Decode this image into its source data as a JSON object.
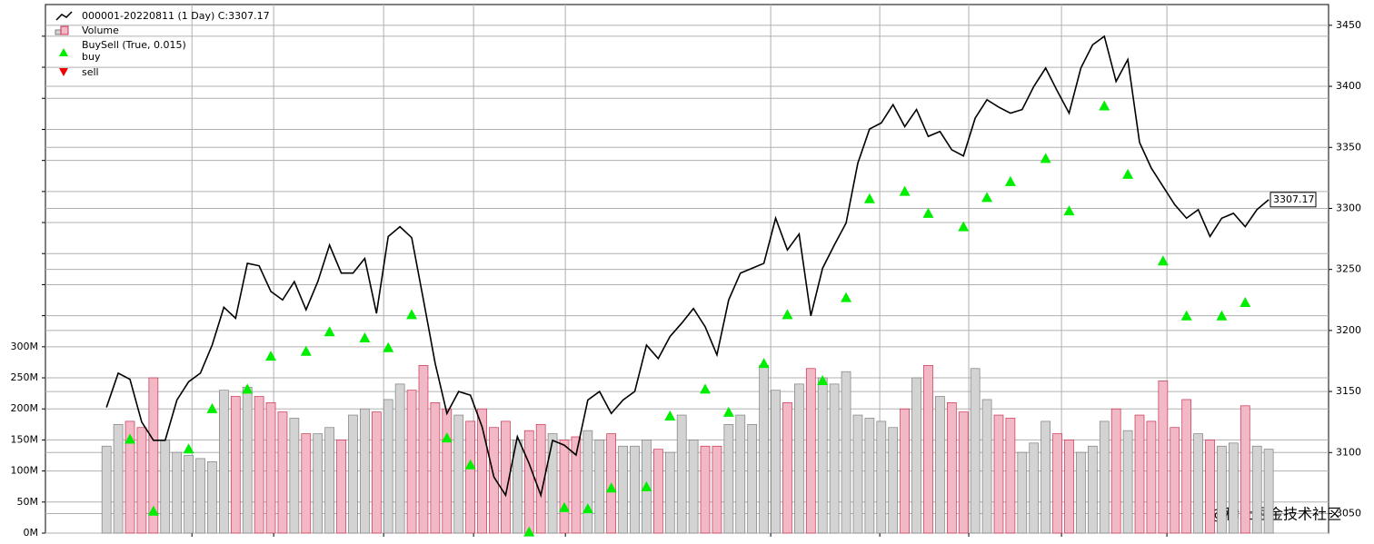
{
  "chart_data": {
    "type": "ohlc-volume",
    "legend": [
      "000001-20220811 (1 Day) C:3307.17",
      "Volume",
      "BuySell (True, 0.015)",
      "buy",
      "sell"
    ],
    "x": [
      0,
      1,
      2,
      3,
      4,
      5,
      6,
      7,
      8,
      9,
      10,
      11,
      12,
      13,
      14,
      15,
      16,
      17,
      18,
      19,
      20,
      21,
      22,
      23,
      24,
      25,
      26,
      27,
      28,
      29,
      30,
      31,
      32,
      33,
      34,
      35,
      36,
      37,
      38,
      39,
      40,
      41,
      42,
      43,
      44,
      45,
      46,
      47,
      48,
      49,
      50,
      51,
      52,
      53,
      54,
      55,
      56,
      57,
      58,
      59,
      60,
      61,
      62,
      63,
      64,
      65,
      66,
      67,
      68,
      69,
      70,
      71,
      72,
      73,
      74,
      75,
      76,
      77,
      78,
      79,
      80,
      81,
      82,
      83,
      84,
      85,
      86,
      87,
      88,
      89,
      90,
      91,
      92,
      93,
      94,
      95,
      96,
      97,
      98,
      99
    ],
    "xlim": [
      -5.2,
      104.1
    ],
    "xgrid": [
      7.28,
      14.24,
      23.61,
      31.27,
      39.09,
      56.58,
      65.87,
      73.45,
      81.35,
      90.33
    ],
    "close": {
      "color": "#000000",
      "values": [
        3137,
        3165,
        3160,
        3125,
        3110,
        3110,
        3143,
        3158,
        3165,
        3188,
        3219,
        3210,
        3255,
        3253,
        3232,
        3225,
        3240,
        3217,
        3240,
        3270,
        3247,
        3247,
        3259,
        3214,
        3277,
        3285,
        3276,
        3225,
        3173,
        3132,
        3150,
        3147,
        3121,
        3080,
        3065,
        3113,
        3091,
        3065,
        3110,
        3106,
        3098,
        3143,
        3150,
        3132,
        3143,
        3150,
        3188,
        3177,
        3195,
        3206,
        3218,
        3203,
        3180,
        3225,
        3247,
        3251,
        3255,
        3292,
        3266,
        3279,
        3212,
        3251,
        3270,
        3288,
        3337,
        3365,
        3370,
        3385,
        3367,
        3381,
        3359,
        3363,
        3348,
        3343,
        3374,
        3389,
        3383,
        3378,
        3381,
        3400,
        3415,
        3396,
        3378,
        3415,
        3434,
        3441,
        3404,
        3422,
        3354,
        3333,
        3318,
        3303,
        3292,
        3299,
        3277,
        3292,
        3296,
        3285,
        3299,
        3307.17
      ],
      "last_label": "3307.17"
    },
    "volume": {
      "up_color": "#d3d3d3",
      "up_edge": "#7f7f7f",
      "down_color": "#f2b8c6",
      "down_edge": "#c83250",
      "values": [
        140,
        175,
        180,
        170,
        250,
        150,
        130,
        125,
        120,
        115,
        230,
        220,
        235,
        220,
        210,
        195,
        185,
        160,
        160,
        170,
        150,
        190,
        200,
        195,
        215,
        240,
        230,
        270,
        210,
        200,
        190,
        180,
        200,
        170,
        180,
        150,
        165,
        175,
        160,
        150,
        155,
        165,
        150,
        160,
        140,
        140,
        150,
        135,
        130,
        190,
        150,
        140,
        140,
        175,
        190,
        175,
        270,
        230,
        210,
        240,
        265,
        250,
        240,
        260,
        190,
        185,
        180,
        170,
        200,
        250,
        270,
        220,
        210,
        195,
        265,
        215,
        190,
        185,
        130,
        145,
        180,
        160,
        150,
        130,
        140,
        180,
        200,
        165,
        190,
        180,
        245,
        170,
        215,
        160,
        150,
        140,
        145,
        205,
        140,
        135
      ]
    },
    "buy": {
      "color": "#00ee00",
      "x": [
        2,
        4,
        7,
        9,
        12,
        14,
        17,
        19,
        22,
        24,
        26,
        29,
        31,
        36,
        39,
        41,
        43,
        46,
        48,
        51,
        53,
        56,
        58,
        61,
        63,
        65,
        68,
        70,
        73,
        75,
        77,
        80,
        82,
        85,
        87,
        90,
        92,
        95,
        97
      ],
      "values": [
        3111,
        3052,
        3103,
        3136,
        3152,
        3179,
        3183,
        3199,
        3194,
        3186,
        3213,
        3112,
        3090,
        3035,
        3055,
        3054,
        3071,
        3072,
        3130,
        3152,
        3133,
        3173,
        3213,
        3159,
        3227,
        3308,
        3314,
        3296,
        3285,
        3309,
        3322,
        3341,
        3298,
        3384,
        3328,
        3257,
        3212,
        3212,
        3223
      ]
    },
    "sell_color": "#ee0000",
    "ylim": [
      3034,
      3467
    ],
    "yticks": [
      3050,
      3100,
      3150,
      3200,
      3250,
      3300,
      3350,
      3400,
      3450
    ],
    "y2lim": [
      0,
      851
    ],
    "y2ticks": [
      {
        "value": 0,
        "label": "0M"
      },
      {
        "value": 50,
        "label": "50M"
      },
      {
        "value": 100,
        "label": "100M"
      },
      {
        "value": 150,
        "label": "150M"
      },
      {
        "value": 200,
        "label": "200M"
      },
      {
        "value": 250,
        "label": "250M"
      },
      {
        "value": 300,
        "label": "300M"
      }
    ],
    "y2_unlabeled_ticks": [
      350,
      400,
      450,
      500,
      550,
      600,
      650,
      700,
      750,
      800
    ],
    "grid": true,
    "watermark": "@稀土掘金技术社区"
  }
}
